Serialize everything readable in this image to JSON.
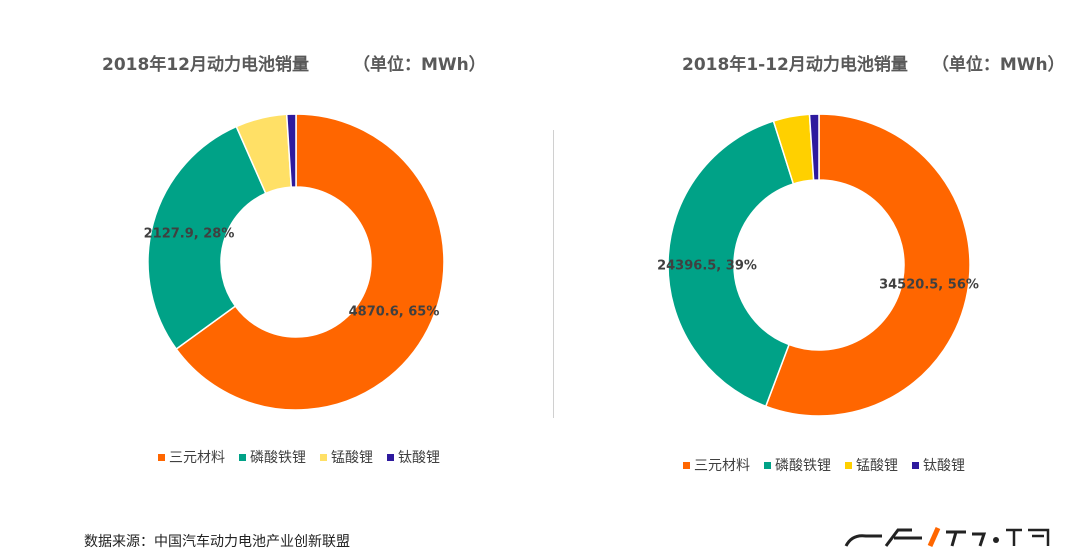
{
  "chart_data": [
    {
      "type": "pie",
      "title": "2018年12月动力电池销量",
      "unit": "（单位：MWh）",
      "categories": [
        "三元材料",
        "磷酸铁锂",
        "锰酸锂",
        "钛酸锂"
      ],
      "values": [
        4870.6,
        2127.9,
        420,
        75
      ],
      "data_labels": [
        "4870.6, 65%",
        "2127.9, 28%",
        "",
        ""
      ],
      "colors": [
        "#FF6600",
        "#00A287",
        "#FFE066",
        "#2E1A9E"
      ],
      "legend": "bottom"
    },
    {
      "type": "pie",
      "title": "2018年1-12月动力电池销量",
      "unit": "（单位：MWh）",
      "categories": [
        "三元材料",
        "磷酸铁锂",
        "锰酸锂",
        "钛酸锂"
      ],
      "values": [
        34520.5,
        24396.5,
        2400,
        620
      ],
      "data_labels": [
        "34520.5, 56%",
        "24396.5, 39%",
        "",
        ""
      ],
      "colors": [
        "#FF6600",
        "#00A287",
        "#FFD000",
        "#2E1A9E"
      ],
      "legend": "bottom"
    }
  ],
  "source": "数据来源：中国汽车动力电池产业创新联盟"
}
